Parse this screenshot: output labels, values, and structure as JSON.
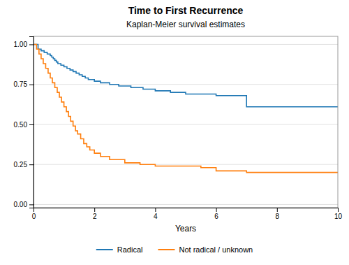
{
  "chart_data": {
    "type": "step",
    "title": "Time to First Recurrence",
    "subtitle": "Kaplan-Meier survival estimates",
    "x_label": "Years",
    "xlim": [
      0,
      10
    ],
    "ylim": [
      -0.02,
      1.05
    ],
    "xticks": [
      0,
      2,
      4,
      6,
      8,
      10
    ],
    "yticks": [
      {
        "value": 0.0,
        "label": "0.00"
      },
      0.25,
      {
        "value": 0.5,
        "label": "0.50"
      },
      0.75,
      {
        "value": 1.0,
        "label": "1.00"
      }
    ],
    "grid": true,
    "legend": "bottom",
    "series": [
      {
        "name": "Radical",
        "x": [
          0,
          0.15,
          0.25,
          0.35,
          0.45,
          0.55,
          0.6,
          0.65,
          0.7,
          0.75,
          0.8,
          0.9,
          1.0,
          1.1,
          1.2,
          1.3,
          1.4,
          1.5,
          1.6,
          1.7,
          1.8,
          2.0,
          2.2,
          2.5,
          2.8,
          3.2,
          3.6,
          4.0,
          4.5,
          5.0,
          6.0,
          7.0,
          10.0
        ],
        "values": [
          1.0,
          0.97,
          0.96,
          0.95,
          0.94,
          0.93,
          0.92,
          0.91,
          0.9,
          0.89,
          0.88,
          0.87,
          0.86,
          0.85,
          0.84,
          0.83,
          0.82,
          0.81,
          0.8,
          0.79,
          0.78,
          0.77,
          0.76,
          0.75,
          0.74,
          0.73,
          0.72,
          0.71,
          0.7,
          0.69,
          0.68,
          0.61,
          0.61
        ]
      },
      {
        "name": "Not radical / unknown",
        "x": [
          0,
          0.1,
          0.18,
          0.25,
          0.32,
          0.4,
          0.48,
          0.55,
          0.62,
          0.7,
          0.78,
          0.85,
          0.92,
          1.0,
          1.08,
          1.15,
          1.22,
          1.3,
          1.38,
          1.45,
          1.55,
          1.65,
          1.75,
          1.85,
          2.0,
          2.2,
          2.5,
          3.0,
          3.5,
          4.0,
          5.5,
          6.0,
          7.0,
          10.0
        ],
        "values": [
          1.0,
          0.97,
          0.94,
          0.91,
          0.88,
          0.85,
          0.82,
          0.79,
          0.76,
          0.73,
          0.7,
          0.67,
          0.64,
          0.61,
          0.58,
          0.55,
          0.52,
          0.49,
          0.46,
          0.44,
          0.41,
          0.38,
          0.36,
          0.34,
          0.32,
          0.3,
          0.28,
          0.26,
          0.25,
          0.24,
          0.23,
          0.21,
          0.2,
          0.2
        ]
      }
    ]
  }
}
